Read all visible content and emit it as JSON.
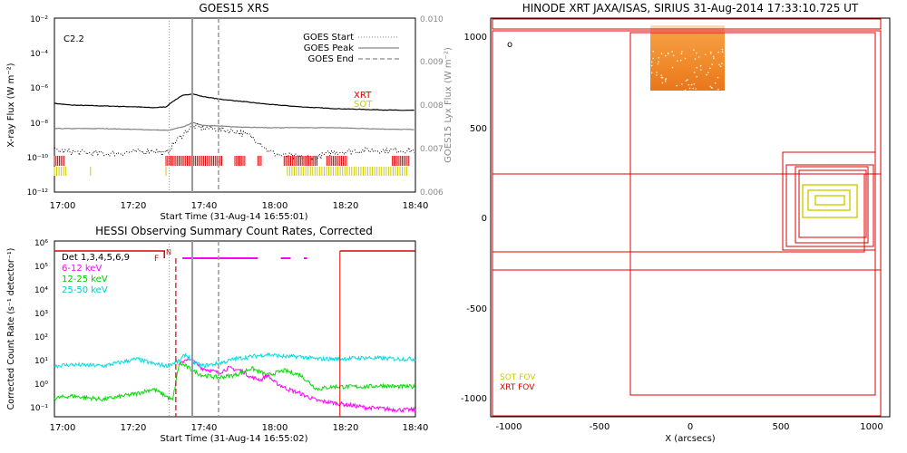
{
  "chart_data": [
    {
      "id": "goes",
      "type": "line",
      "title": "GOES15 XRS",
      "xlabel": "Start Time (31-Aug-14 16:55:01)",
      "ylabel": "X-ray Flux (W m⁻²)",
      "ylabel_right": "GOES15 Lyx Flux (W m⁻²)",
      "x_ticks": [
        "17:00",
        "17:20",
        "17:40",
        "18:00",
        "18:20",
        "18:40"
      ],
      "y_ticks": [
        "10⁻²",
        "10⁻⁴",
        "10⁻⁶",
        "10⁻⁸",
        "10⁻¹⁰",
        "10⁻¹²"
      ],
      "y_ticks_right": [
        "0.010",
        "0.009",
        "0.008",
        "0.007",
        "0.006"
      ],
      "flare_class": "C2.2",
      "legend": [
        "GOES Start",
        "GOES Peak",
        "GOES End"
      ],
      "xrt_label": "XRT",
      "sot_label": "SOT",
      "xlim_min": [
        -5,
        105
      ],
      "ylim_log": [
        -12,
        -2
      ],
      "event_lines_min": {
        "start": 30,
        "peak": 37,
        "end": 45
      },
      "series": [
        {
          "name": "GOES long",
          "color": "#000000",
          "x": [
            -5,
            0,
            10,
            20,
            25,
            29,
            31,
            34,
            37,
            40,
            45,
            50,
            60,
            70,
            80,
            90,
            100,
            105
          ],
          "y": [
            -6.9,
            -7.0,
            -7.05,
            -7.1,
            -7.15,
            -7.1,
            -6.8,
            -6.45,
            -6.35,
            -6.5,
            -6.65,
            -6.75,
            -6.95,
            -7.1,
            -7.2,
            -7.25,
            -7.3,
            -7.3
          ]
        },
        {
          "name": "Lyx",
          "color": "#808080",
          "x": [
            -5,
            10,
            20,
            30,
            35,
            37,
            40,
            50,
            60,
            70,
            80,
            90,
            100,
            105
          ],
          "y": [
            -8.35,
            -8.35,
            -8.4,
            -8.45,
            -8.2,
            -8.0,
            -8.15,
            -8.25,
            -8.3,
            -8.3,
            -8.3,
            -8.35,
            -8.4,
            -8.4
          ]
        },
        {
          "name": "GOES short",
          "color": "#000000",
          "dotted": true,
          "x": [
            -5,
            0,
            10,
            20,
            25,
            29,
            31,
            34,
            37,
            40,
            45,
            50,
            55,
            58,
            60,
            62,
            65,
            70,
            75,
            80,
            90,
            100,
            105
          ],
          "y": [
            -9.6,
            -9.7,
            -9.8,
            -9.7,
            -9.6,
            -9.8,
            -9.3,
            -8.7,
            -8.2,
            -8.3,
            -8.4,
            -8.5,
            -8.8,
            -9.2,
            -9.6,
            -9.8,
            -9.9,
            -10.0,
            -10.0,
            -9.7,
            -9.6,
            -9.6,
            -9.6
          ]
        }
      ],
      "xrt_intervals": [
        [
          -5,
          -2
        ],
        [
          29,
          46
        ],
        [
          50,
          53
        ],
        [
          57,
          58
        ],
        [
          65,
          75
        ],
        [
          78,
          84
        ],
        [
          98,
          103
        ]
      ],
      "sot_intervals": [
        [
          -5,
          -1
        ],
        [
          6,
          6.5
        ],
        [
          29,
          29.5
        ],
        [
          66,
          103
        ]
      ]
    },
    {
      "id": "hessi",
      "type": "line",
      "title": "HESSI Observing Summary Count Rates, Corrected",
      "xlabel": "Start Time (31-Aug-14 16:55:02)",
      "ylabel": "Corrected Count Rate (s⁻¹ detector⁻¹)",
      "x_ticks": [
        "17:00",
        "17:20",
        "17:40",
        "18:00",
        "18:20",
        "18:40"
      ],
      "y_ticks": [
        "10⁶",
        "10⁵",
        "10⁴",
        "10³",
        "10²",
        "10¹",
        "10⁰",
        "10⁻¹"
      ],
      "legend": [
        "Det 1,3,4,5,6,9",
        "6-12 keV",
        "12-25 keV",
        "25-50 keV"
      ],
      "flag_f": "F",
      "flag_n": "N",
      "xlim_min": [
        -5,
        105
      ],
      "ylim_log": [
        -1.2,
        6.4
      ],
      "event_lines_min": {
        "start": 30,
        "peak": 37,
        "end": 45
      },
      "series": [
        {
          "name": "6-12 keV",
          "color": "#ff00ff",
          "x": [
            33,
            35,
            37,
            40,
            45,
            48,
            52,
            55,
            58,
            60,
            62,
            66,
            70,
            75,
            80,
            90,
            100,
            105
          ],
          "y": [
            1.0,
            1.3,
            1.2,
            0.9,
            0.7,
            0.9,
            0.8,
            0.5,
            0.4,
            0.6,
            0.3,
            0.0,
            -0.2,
            -0.5,
            -0.6,
            -0.8,
            -0.9,
            -0.9
          ]
        },
        {
          "name": "12-25 keV",
          "color": "#00dd00",
          "x": [
            -5,
            0,
            10,
            20,
            25,
            29,
            31,
            33,
            35,
            37,
            40,
            45,
            50,
            55,
            60,
            65,
            70,
            75,
            80,
            85,
            90,
            95,
            100,
            105
          ],
          "y": [
            -0.4,
            -0.3,
            -0.45,
            -0.2,
            0.0,
            -0.3,
            -0.5,
            1.1,
            1.0,
            0.8,
            0.6,
            0.5,
            0.6,
            0.9,
            0.6,
            0.8,
            0.6,
            0.0,
            0.1,
            0.1,
            0.1,
            0.15,
            0.1,
            0.1
          ]
        },
        {
          "name": "25-50 keV",
          "color": "#00dddd",
          "x": [
            -5,
            0,
            10,
            20,
            25,
            29,
            33,
            35,
            37,
            40,
            45,
            50,
            55,
            60,
            65,
            70,
            75,
            80,
            90,
            100,
            105
          ],
          "y": [
            1.0,
            1.05,
            1.0,
            1.3,
            1.1,
            1.0,
            1.2,
            1.5,
            1.2,
            1.0,
            1.1,
            1.3,
            1.4,
            1.5,
            1.4,
            1.4,
            1.3,
            1.3,
            1.35,
            1.3,
            1.3
          ]
        }
      ],
      "attenuator_x_min": [
        30,
        82
      ],
      "night_segments": [
        [
          34,
          57
        ],
        [
          64,
          67
        ],
        [
          71,
          72
        ]
      ]
    },
    {
      "id": "xrt",
      "type": "scatter",
      "title": "HINODE XRT JAXA/ISAS, SIRIUS 31-Aug-2014 17:33:10.725 UT",
      "xlabel": "X (arcsecs)",
      "ylabel": "",
      "xlim": [
        -1100,
        1100
      ],
      "ylim": [
        -1100,
        1050
      ],
      "x_ticks": [
        "-1000",
        "-500",
        "0",
        "500",
        "1000"
      ],
      "y_ticks": [
        "1000",
        "500",
        "0",
        "-500",
        "-1000"
      ],
      "fov_legend": [
        "SOT FOV",
        "XRT FOV"
      ],
      "circle_marker": "o",
      "xrt_boxes_arcsec": [
        [
          -1090,
          -1100,
          1050,
          1030
        ],
        [
          -330,
          -980,
          1020,
          1020
        ],
        [
          -1090,
          1040,
          1050,
          1100
        ],
        [
          -1090,
          -290,
          1050,
          240
        ],
        [
          -1090,
          -190,
          960,
          240
        ],
        [
          510,
          -180,
          1020,
          360
        ],
        [
          530,
          -160,
          1010,
          290
        ],
        [
          580,
          -140,
          980,
          280
        ],
        [
          600,
          -110,
          970,
          260
        ]
      ],
      "sot_boxes_arcsec": [
        [
          620,
          0,
          920,
          180
        ],
        [
          650,
          40,
          880,
          150
        ],
        [
          690,
          70,
          850,
          120
        ]
      ],
      "image_patch_arcsec": [
        -220,
        700,
        190,
        1060
      ]
    }
  ],
  "colors": {
    "xrt_red": "#dd0000",
    "sot_yellow": "#cccc00",
    "axis": "#000000",
    "frame_grey": "#999999"
  }
}
